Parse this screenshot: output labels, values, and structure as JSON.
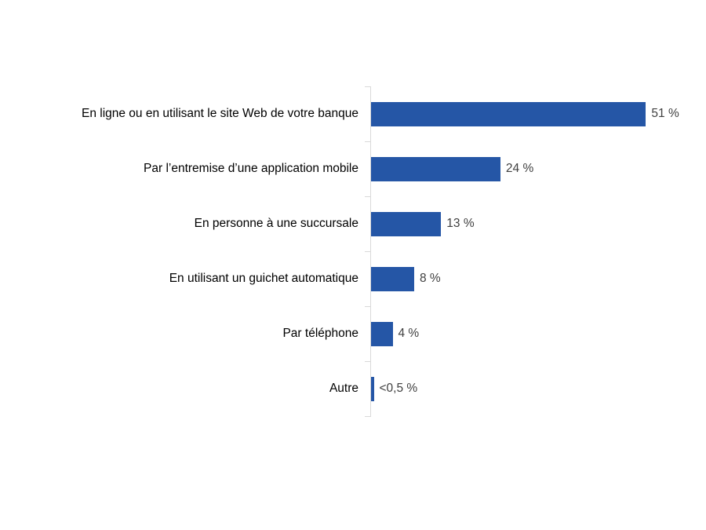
{
  "chart_data": {
    "type": "bar",
    "orientation": "horizontal",
    "title": "",
    "xlabel": "",
    "ylabel": "",
    "categories": [
      "En ligne ou en utilisant le site Web de votre banque",
      "Par l’entremise d’une application mobile",
      "En personne à une succursale",
      "En utilisant un guichet automatique",
      "Par téléphone",
      "Autre"
    ],
    "values": [
      51,
      24,
      13,
      8,
      4,
      0.5
    ],
    "value_labels": [
      "51 %",
      "24 %",
      "13 %",
      "8 %",
      "4 %",
      "<0,5 %"
    ],
    "xlim": [
      0,
      60
    ],
    "grid": false,
    "legend": false,
    "bar_color": "#2556A6",
    "axis_color": "#D9D9D9",
    "value_label_color": "#404040",
    "category_label_color": "#000000"
  }
}
